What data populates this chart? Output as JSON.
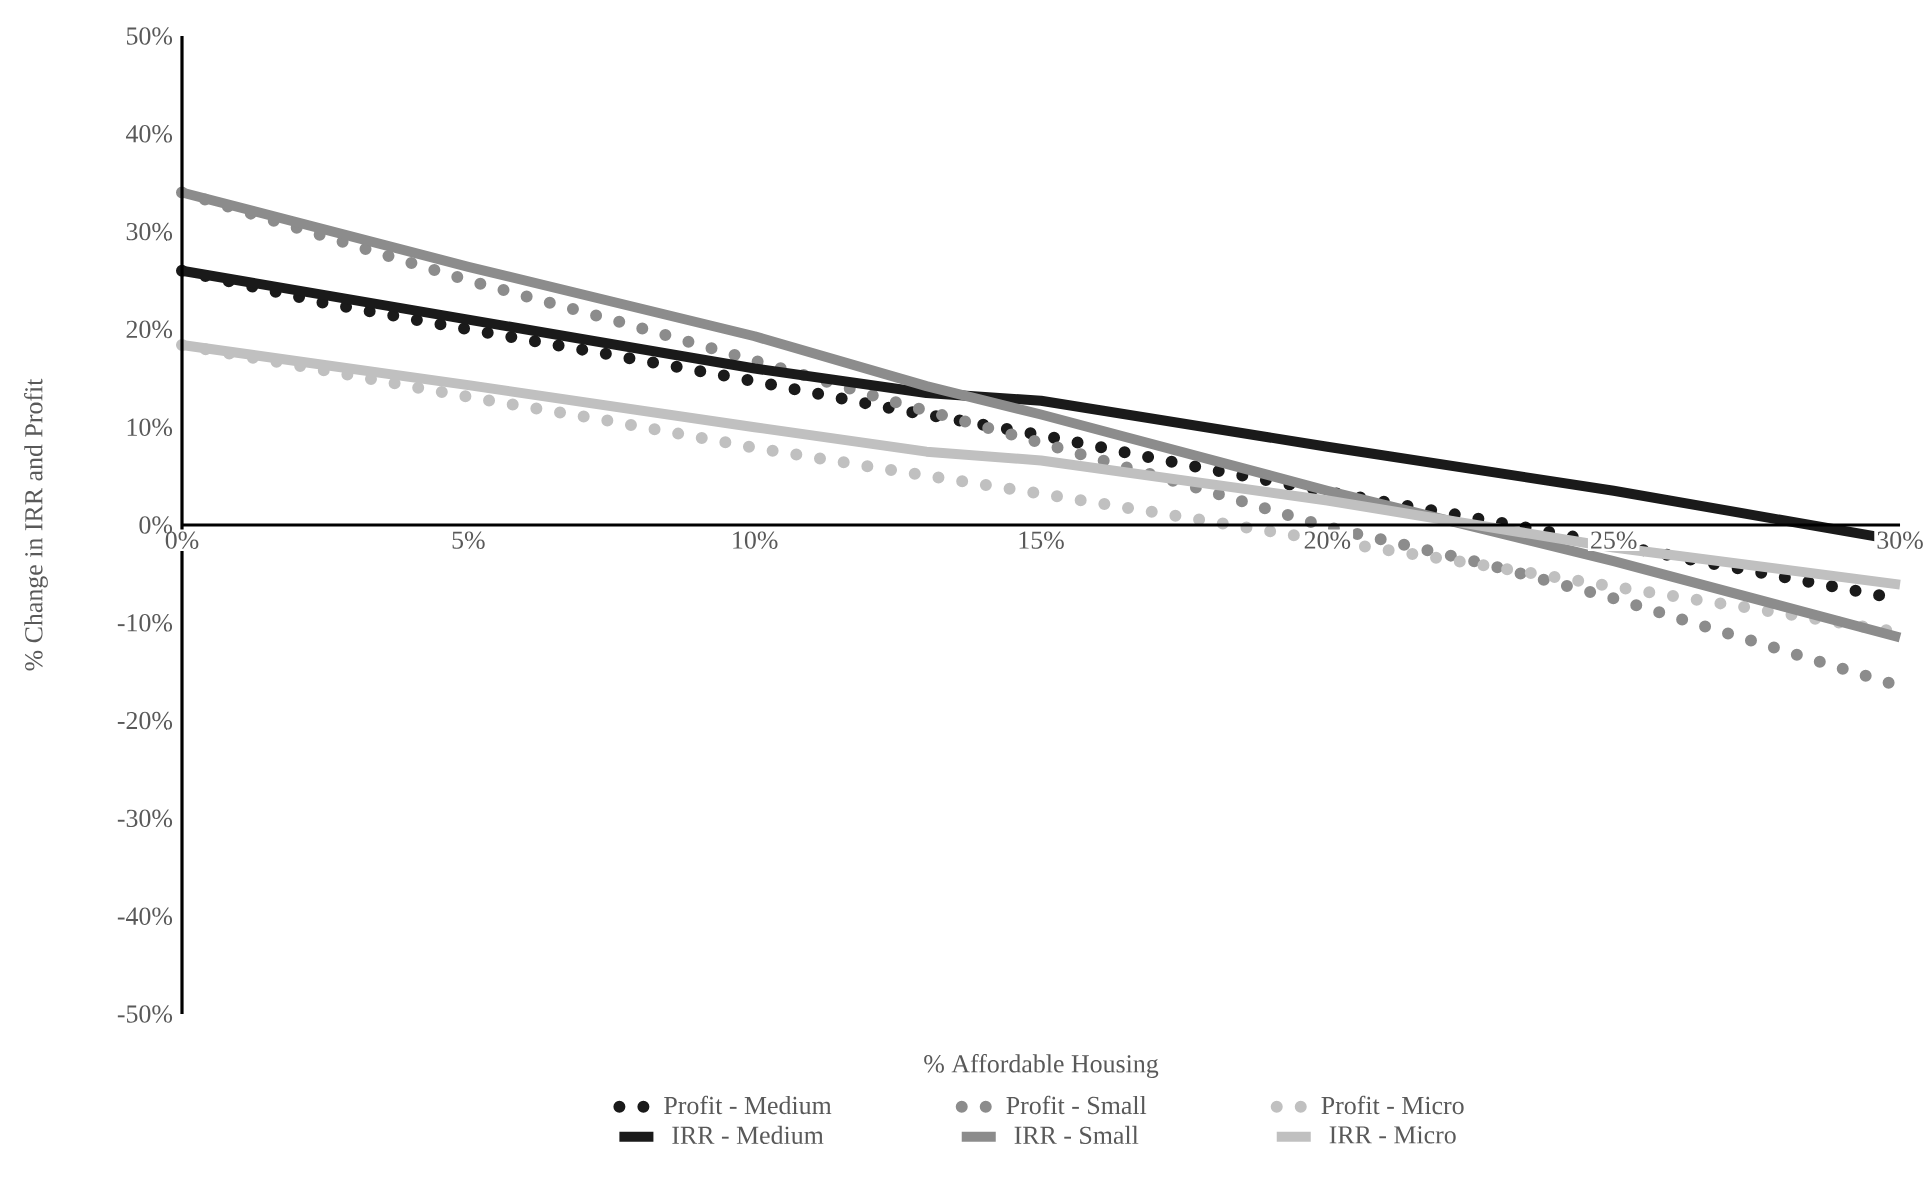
{
  "chart_data": {
    "type": "line",
    "xlabel": "% Affordable Housing",
    "ylabel": "% Change in IRR and Profit",
    "xlim": [
      0,
      30
    ],
    "ylim": [
      -50,
      50
    ],
    "xticks": [
      {
        "value": 0,
        "label": "0%"
      },
      {
        "value": 5,
        "label": "5%"
      },
      {
        "value": 10,
        "label": "10%"
      },
      {
        "value": 15,
        "label": "15%"
      },
      {
        "value": 20,
        "label": "20%"
      },
      {
        "value": 25,
        "label": "25%"
      },
      {
        "value": 30,
        "label": "30%"
      }
    ],
    "yticks": [
      {
        "value": -50,
        "label": "-50%"
      },
      {
        "value": -40,
        "label": "-40%"
      },
      {
        "value": -30,
        "label": "-30%"
      },
      {
        "value": -20,
        "label": "-20%"
      },
      {
        "value": -10,
        "label": "-10%"
      },
      {
        "value": 0,
        "label": "0%"
      },
      {
        "value": 10,
        "label": "10%"
      },
      {
        "value": 20,
        "label": "20%"
      },
      {
        "value": 30,
        "label": "30%"
      },
      {
        "value": 40,
        "label": "40%"
      },
      {
        "value": 50,
        "label": "50%"
      }
    ],
    "legend": "bottom",
    "series": [
      {
        "name": "Profit - Medium",
        "color": "#1a1a1a",
        "line_style": "dotted",
        "x": [
          0,
          2.5,
          5,
          7.5,
          10,
          12.5,
          15,
          17.5,
          20,
          22.5,
          23.5,
          26.5,
          27.5,
          30
        ],
        "values": [
          26,
          22.7,
          20,
          17.4,
          14.7,
          11.8,
          9.2,
          6.2,
          3.4,
          0.8,
          -0.3,
          -3.7,
          -4.8,
          -7.6
        ]
      },
      {
        "name": "Profit - Small",
        "color": "#8c8c8c",
        "line_style": "dotted",
        "x": [
          0,
          2.5,
          5,
          7.5,
          10,
          12.5,
          15,
          17.5,
          20,
          22.5,
          25,
          27.5,
          30
        ],
        "values": [
          34,
          29.5,
          25,
          21,
          16.8,
          12.5,
          8.4,
          4.2,
          -0.2,
          -3.6,
          -7.5,
          -12,
          -16.5
        ]
      },
      {
        "name": "Profit - Micro",
        "color": "#c0c0c0",
        "line_style": "dotted",
        "x": [
          0,
          2.5,
          5,
          7.5,
          10,
          12.5,
          15,
          17.5,
          20,
          22.5,
          25,
          27.5,
          30
        ],
        "values": [
          18.4,
          15.8,
          13.1,
          10.6,
          7.9,
          5.5,
          3.2,
          0.8,
          -1.6,
          -3.9,
          -6.3,
          -8.6,
          -11
        ]
      },
      {
        "name": "IRR - Medium",
        "color": "#1a1a1a",
        "line_style": "solid",
        "x": [
          0,
          5,
          10,
          13,
          15,
          20,
          25,
          30
        ],
        "values": [
          26,
          21,
          16,
          13.5,
          12.7,
          8,
          3.5,
          -1.6
        ]
      },
      {
        "name": "IRR - Small",
        "color": "#8c8c8c",
        "line_style": "solid",
        "x": [
          0,
          5,
          10,
          13,
          15,
          20,
          25,
          30
        ],
        "values": [
          34,
          26.4,
          19.3,
          14.2,
          11.3,
          3.5,
          -3.7,
          -11.5
        ]
      },
      {
        "name": "IRR - Micro",
        "color": "#c0c0c0",
        "line_style": "solid",
        "x": [
          0,
          5,
          10,
          13,
          15,
          20,
          25,
          30
        ],
        "values": [
          18.4,
          14.3,
          10,
          7.5,
          6.6,
          2.5,
          -2.3,
          -6.1
        ]
      }
    ]
  }
}
